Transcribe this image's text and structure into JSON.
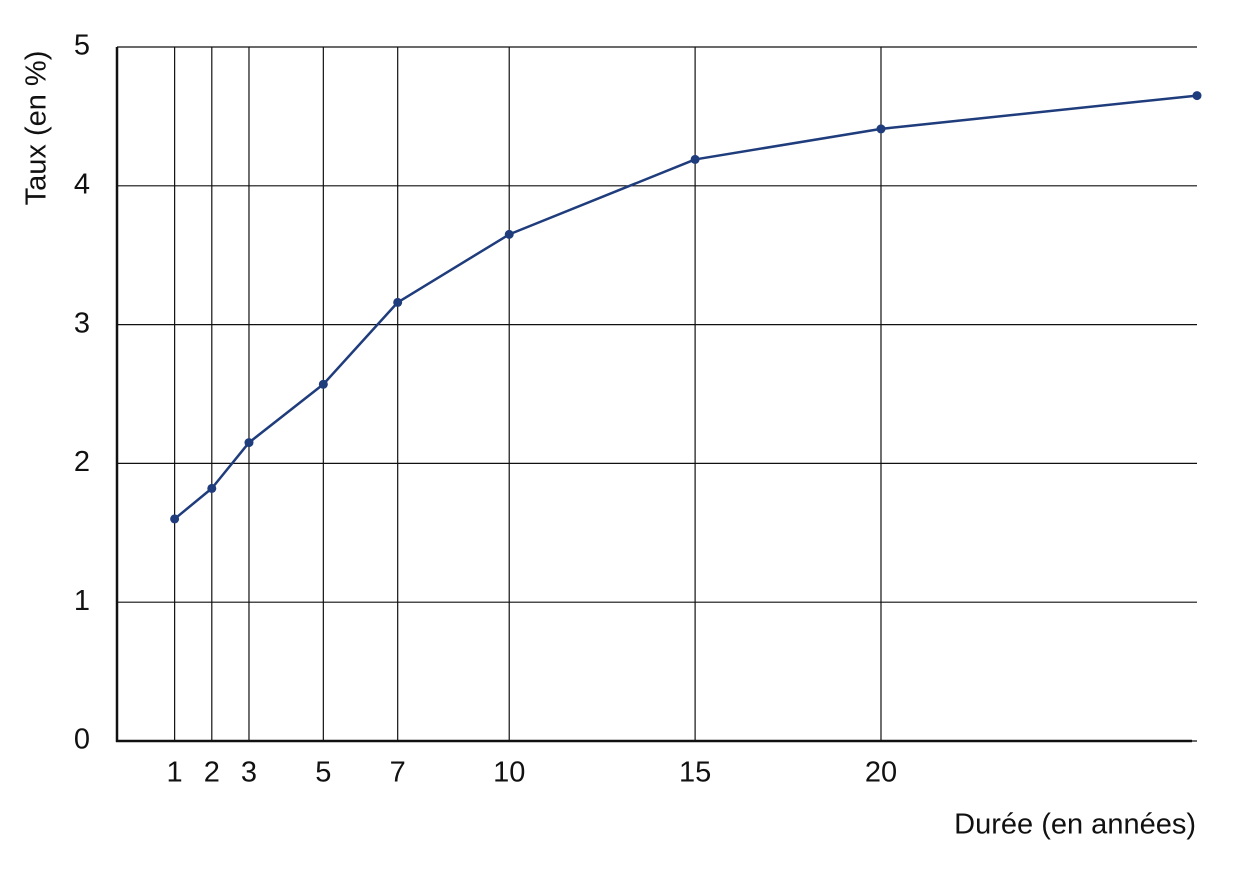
{
  "chart_data": {
    "type": "line",
    "x_label": "Durée (en années)",
    "y_label": "Taux (en %)",
    "x": [
      1,
      2,
      3,
      5,
      7,
      10,
      15,
      20,
      28.5
    ],
    "series": [
      {
        "name": "Taux",
        "color": "#1f3c7c",
        "values": [
          1.6,
          1.82,
          2.15,
          2.57,
          3.16,
          3.65,
          4.19,
          4.41,
          4.65
        ]
      }
    ],
    "xlim": [
      -0.55,
      28.5
    ],
    "xticks": [
      1,
      2,
      3,
      5,
      7,
      10,
      15,
      20
    ],
    "ylim": [
      0,
      5
    ],
    "yticks": [
      0,
      1,
      2,
      3,
      4,
      5
    ],
    "grid": true
  }
}
